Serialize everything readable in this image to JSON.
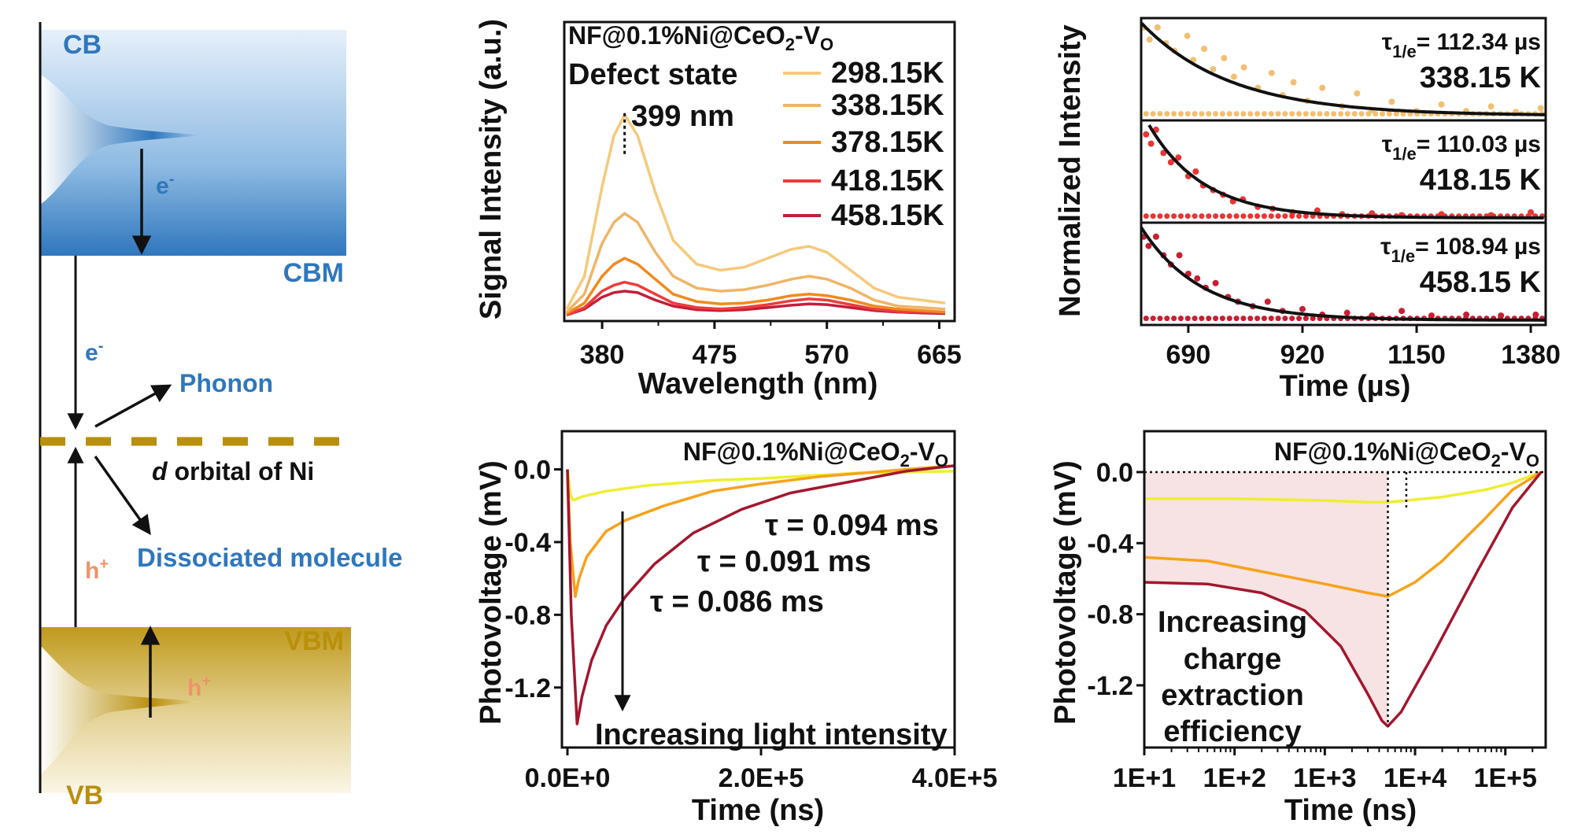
{
  "colors": {
    "blue": "#2f77bd",
    "gold": "#b98f0c",
    "hole": "#f0926a",
    "black": "#111111"
  },
  "diagram": {
    "cb": "CB",
    "cbm": "CBM",
    "vb": "VB",
    "vbm": "VBM",
    "electron": "e",
    "electron_sup": "-",
    "hole": "h",
    "hole_sup": "+",
    "phonon": "Phonon",
    "d_orbital_italic": "d",
    "d_orbital_rest": " orbital of Ni",
    "dissociated": "Dissociated molecule"
  },
  "sample_label": {
    "main": "NF@0.1%Ni@CeO",
    "sub1": "2",
    "mid": "-V",
    "sub2": "O"
  },
  "chart_data": [
    {
      "type": "line",
      "title": "",
      "annotations": [
        "Defect state",
        "399 nm"
      ],
      "xlabel": "Wavelength (nm)",
      "ylabel": "Signal Intensity (a.u.)",
      "xlim": [
        348,
        678
      ],
      "ylim": [
        0,
        1
      ],
      "xticks": [
        380,
        475,
        570,
        665
      ],
      "legend_position": "top-right",
      "grid": false,
      "x": [
        350,
        365,
        380,
        390,
        399,
        410,
        425,
        440,
        460,
        480,
        500,
        520,
        540,
        555,
        570,
        590,
        610,
        630,
        650,
        670
      ],
      "series": [
        {
          "name": "298.15K",
          "color": "#f6c97a",
          "values": [
            0.04,
            0.15,
            0.45,
            0.62,
            0.69,
            0.62,
            0.43,
            0.27,
            0.19,
            0.17,
            0.18,
            0.21,
            0.24,
            0.25,
            0.23,
            0.17,
            0.11,
            0.08,
            0.07,
            0.06
          ]
        },
        {
          "name": "338.15K",
          "color": "#f0b467",
          "values": [
            0.03,
            0.09,
            0.26,
            0.33,
            0.36,
            0.33,
            0.23,
            0.15,
            0.11,
            0.1,
            0.105,
            0.12,
            0.14,
            0.15,
            0.14,
            0.11,
            0.07,
            0.05,
            0.045,
            0.04
          ]
        },
        {
          "name": "378.15K",
          "color": "#f08a1c",
          "values": [
            0.025,
            0.06,
            0.15,
            0.19,
            0.21,
            0.19,
            0.14,
            0.09,
            0.065,
            0.057,
            0.06,
            0.07,
            0.085,
            0.09,
            0.085,
            0.07,
            0.05,
            0.04,
            0.035,
            0.03
          ]
        },
        {
          "name": "418.15K",
          "color": "#ee3b3b",
          "values": [
            0.02,
            0.045,
            0.1,
            0.12,
            0.13,
            0.12,
            0.09,
            0.06,
            0.045,
            0.04,
            0.045,
            0.055,
            0.068,
            0.074,
            0.07,
            0.055,
            0.04,
            0.032,
            0.03,
            0.028
          ]
        },
        {
          "name": "458.15K",
          "color": "#c41e3a",
          "values": [
            0.02,
            0.04,
            0.08,
            0.095,
            0.1,
            0.095,
            0.07,
            0.05,
            0.038,
            0.035,
            0.038,
            0.045,
            0.053,
            0.057,
            0.055,
            0.045,
            0.035,
            0.03,
            0.027,
            0.025
          ]
        }
      ],
      "peak_marker": 399
    },
    {
      "type": "scatter",
      "xlabel": "Time (µs)",
      "ylabel": "Normalized Intensity",
      "xlim": [
        595,
        1410
      ],
      "xticks": [
        690,
        920,
        1150,
        1380
      ],
      "panels": [
        {
          "temp": "338.15 K",
          "tau_label": "τ",
          "tau_sub": "1/e",
          "tau_value": "= 112.34  µs",
          "color": "#f2bf72",
          "tau_text_color": "#f2bf72",
          "fit": {
            "t0": 595,
            "decay": 180
          },
          "points": [
            [
              600,
              0.95
            ],
            [
              612,
              0.82
            ],
            [
              628,
              0.95
            ],
            [
              645,
              0.78
            ],
            [
              662,
              0.7
            ],
            [
              688,
              0.86
            ],
            [
              700,
              0.6
            ],
            [
              722,
              0.72
            ],
            [
              740,
              0.5
            ],
            [
              762,
              0.62
            ],
            [
              782,
              0.42
            ],
            [
              802,
              0.52
            ],
            [
              830,
              0.3
            ],
            [
              858,
              0.46
            ],
            [
              880,
              0.22
            ],
            [
              902,
              0.36
            ],
            [
              930,
              0.16
            ],
            [
              960,
              0.3
            ],
            [
              1000,
              0.1
            ],
            [
              1030,
              0.24
            ],
            [
              1060,
              0.06
            ],
            [
              1100,
              0.15
            ],
            [
              1150,
              0.05
            ],
            [
              1200,
              0.12
            ],
            [
              1250,
              0.05
            ],
            [
              1300,
              0.1
            ],
            [
              1350,
              0.04
            ],
            [
              1400,
              0.08
            ]
          ]
        },
        {
          "temp": "418.15 K",
          "tau_label": "τ",
          "tau_sub": "1/e",
          "tau_value": "= 110.03  µs",
          "color": "#ea3434",
          "tau_text_color": "#ea3434",
          "fit": {
            "t0": 611,
            "decay": 110
          },
          "points": [
            [
              605,
              0.9
            ],
            [
              615,
              0.8
            ],
            [
              625,
              0.95
            ],
            [
              640,
              0.7
            ],
            [
              655,
              0.6
            ],
            [
              670,
              0.65
            ],
            [
              690,
              0.45
            ],
            [
              705,
              0.5
            ],
            [
              720,
              0.35
            ],
            [
              740,
              0.3
            ],
            [
              760,
              0.25
            ],
            [
              780,
              0.18
            ],
            [
              800,
              0.2
            ],
            [
              830,
              0.12
            ],
            [
              860,
              0.1
            ],
            [
              900,
              0.06
            ],
            [
              950,
              0.08
            ],
            [
              1000,
              0.04
            ],
            [
              1060,
              0.05
            ],
            [
              1120,
              0.03
            ],
            [
              1200,
              0.04
            ],
            [
              1300,
              0.03
            ],
            [
              1380,
              0.06
            ]
          ]
        },
        {
          "temp": "458.15 K",
          "tau_label": "τ",
          "tau_sub": "1/e",
          "tau_value": "= 108.94  µs",
          "color": "#c81e32",
          "tau_text_color": "#c81e32",
          "fit": {
            "t0": 595,
            "decay": 120
          },
          "points": [
            [
              600,
              0.9
            ],
            [
              610,
              0.8
            ],
            [
              625,
              0.9
            ],
            [
              640,
              0.7
            ],
            [
              655,
              0.6
            ],
            [
              672,
              0.7
            ],
            [
              690,
              0.5
            ],
            [
              708,
              0.45
            ],
            [
              725,
              0.35
            ],
            [
              745,
              0.4
            ],
            [
              770,
              0.25
            ],
            [
              790,
              0.2
            ],
            [
              820,
              0.15
            ],
            [
              850,
              0.2
            ],
            [
              880,
              0.1
            ],
            [
              920,
              0.12
            ],
            [
              960,
              0.06
            ],
            [
              1010,
              0.08
            ],
            [
              1060,
              0.05
            ],
            [
              1120,
              0.1
            ],
            [
              1180,
              0.05
            ],
            [
              1250,
              0.06
            ],
            [
              1320,
              0.05
            ],
            [
              1390,
              0.06
            ]
          ]
        }
      ]
    },
    {
      "type": "line",
      "xlabel": "Time (ns)",
      "ylabel": "Photovoltage (mV)",
      "xlim": [
        -5700,
        400000
      ],
      "ylim": [
        -1.53,
        0.21
      ],
      "xticks": [
        0,
        200000,
        400000
      ],
      "xtick_labels": [
        "0.0E+0",
        "2.0E+5",
        "4.0E+5"
      ],
      "yticks": [
        0.0,
        -0.4,
        -0.8,
        -1.2
      ],
      "ytick_labels": [
        "0.0",
        "-0.4",
        "-0.8",
        "-1.2"
      ],
      "annotation": "Increasing light intensity",
      "series": [
        {
          "tau": "τ = 0.094 ms",
          "color": "#eeee33",
          "x": [
            0,
            3000,
            6000,
            15000,
            40000,
            80000,
            150000,
            200000,
            300000,
            400000
          ],
          "values": [
            0,
            -0.14,
            -0.17,
            -0.15,
            -0.12,
            -0.09,
            -0.06,
            -0.05,
            -0.02,
            -0.01
          ]
        },
        {
          "tau": "τ = 0.091 ms",
          "color": "#f7a21b",
          "x": [
            0,
            3000,
            8000,
            12000,
            20000,
            40000,
            60000,
            100000,
            150000,
            200000,
            260000,
            350000,
            400000
          ],
          "values": [
            0,
            -0.4,
            -0.7,
            -0.6,
            -0.48,
            -0.34,
            -0.28,
            -0.2,
            -0.12,
            -0.08,
            -0.04,
            0,
            0.02
          ]
        },
        {
          "tau": "τ = 0.086 ms",
          "color": "#a3172e",
          "x": [
            0,
            4000,
            10000,
            15000,
            25000,
            40000,
            60000,
            90000,
            130000,
            180000,
            230000,
            300000,
            350000,
            400000
          ],
          "values": [
            0,
            -0.8,
            -1.4,
            -1.25,
            -1.05,
            -0.86,
            -0.7,
            -0.52,
            -0.35,
            -0.22,
            -0.13,
            -0.06,
            -0.01,
            0.02
          ]
        }
      ]
    },
    {
      "type": "line",
      "xscale": "log",
      "xlabel": "Time (ns)",
      "ylabel": "Photovoltage (mV)",
      "xlim": [
        10,
        280000
      ],
      "ylim": [
        -1.55,
        0.23
      ],
      "xticks": [
        10,
        100,
        1000,
        10000,
        100000
      ],
      "xtick_labels": [
        "1E+1",
        "1E+2",
        "1E+3",
        "1E+4",
        "1E+5"
      ],
      "yticks": [
        0.0,
        -0.4,
        -0.8,
        -1.2
      ],
      "ytick_labels": [
        "0.0",
        "-0.4",
        "-0.8",
        "-1.2"
      ],
      "annotation_lines": [
        "Increasing",
        "charge",
        "extraction",
        "efficiency"
      ],
      "markers_x": [
        5000,
        8000
      ],
      "shade_color": "#f6dede",
      "series": [
        {
          "color": "#eeee33",
          "x": [
            10,
            100,
            1000,
            3000,
            5000,
            8000,
            20000,
            60000,
            120000,
            250000
          ],
          "values": [
            -0.15,
            -0.15,
            -0.16,
            -0.17,
            -0.17,
            -0.16,
            -0.14,
            -0.1,
            -0.06,
            0
          ]
        },
        {
          "color": "#f7a21b",
          "x": [
            10,
            50,
            200,
            1000,
            3000,
            5000,
            10000,
            20000,
            60000,
            120000,
            250000
          ],
          "values": [
            -0.48,
            -0.5,
            -0.56,
            -0.63,
            -0.68,
            -0.7,
            -0.62,
            -0.5,
            -0.26,
            -0.1,
            0
          ]
        },
        {
          "color": "#a3172e",
          "x": [
            10,
            50,
            200,
            600,
            1500,
            3000,
            4300,
            5000,
            7000,
            15000,
            50000,
            120000,
            250000
          ],
          "values": [
            -0.62,
            -0.63,
            -0.68,
            -0.78,
            -0.98,
            -1.25,
            -1.4,
            -1.43,
            -1.35,
            -1.05,
            -0.55,
            -0.2,
            0
          ]
        }
      ]
    }
  ]
}
